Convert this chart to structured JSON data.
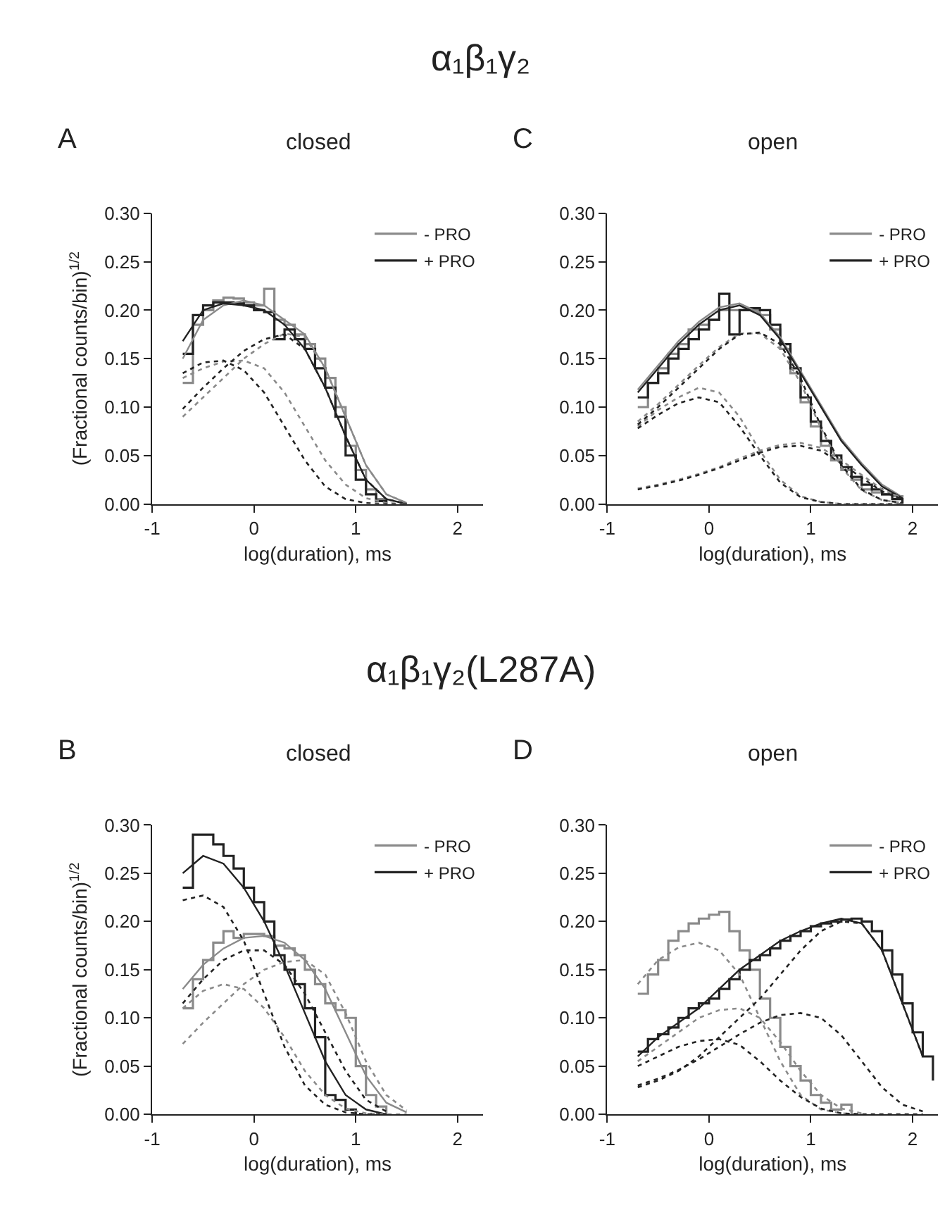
{
  "chart_data": [
    {
      "type": "step",
      "title": "closed",
      "ylabel": "(Fractional counts/bin)$^{1/2}$",
      "xlabel": "log(duration), ms",
      "annotations": [
        "A",
        "α₁β₁γ₂"
      ],
      "xlim": [
        -1,
        2.25
      ],
      "xticks": [
        -1,
        0,
        1,
        2
      ],
      "ylim": [
        0,
        0.3
      ],
      "yticks": [
        {
          "value": 0,
          "label": "0.00"
        },
        {
          "value": 0.05,
          "label": "0.05"
        },
        {
          "value": 0.1,
          "label": "0.10"
        },
        {
          "value": 0.15,
          "label": "0.15"
        },
        {
          "value": 0.2,
          "label": "0.20"
        },
        {
          "value": 0.25,
          "label": "0.25"
        },
        {
          "value": 0.3,
          "label": "0.30"
        }
      ],
      "legend": "top right",
      "series": [
        {
          "name": "- PRO",
          "color": "#8a8a8a",
          "line_style": "solid",
          "x": [
            -0.7,
            -0.6,
            -0.5,
            -0.4,
            -0.3,
            -0.2,
            -0.1,
            0,
            0.1,
            0.2,
            0.3,
            0.4,
            0.5,
            0.6,
            0.7,
            0.8,
            0.9,
            1.0,
            1.1,
            1.2,
            1.3
          ],
          "values": [
            0.125,
            0.185,
            0.2,
            0.21,
            0.213,
            0.212,
            0.208,
            0.205,
            0.222,
            0.19,
            0.185,
            0.175,
            0.165,
            0.15,
            0.13,
            0.1,
            0.06,
            0.035,
            0.015,
            0.005,
            0.0
          ]
        },
        {
          "name": "+ PRO",
          "color": "#222222",
          "line_style": "solid",
          "x": [
            -0.7,
            -0.6,
            -0.5,
            -0.4,
            -0.3,
            -0.2,
            -0.1,
            0,
            0.1,
            0.2,
            0.3,
            0.4,
            0.5,
            0.6,
            0.7,
            0.8,
            0.9,
            1.0,
            1.1,
            1.2,
            1.3
          ],
          "values": [
            0.155,
            0.195,
            0.205,
            0.208,
            0.208,
            0.207,
            0.205,
            0.2,
            0.198,
            0.17,
            0.18,
            0.17,
            0.16,
            0.14,
            0.12,
            0.09,
            0.05,
            0.025,
            0.01,
            0.003,
            0.0
          ]
        },
        {
          "type": "line",
          "color": "#8a8a8a",
          "line_style": "solid",
          "x": [
            -0.7,
            -0.5,
            -0.3,
            -0.1,
            0.1,
            0.3,
            0.5,
            0.7,
            0.9,
            1.1,
            1.3,
            1.5
          ],
          "values": [
            0.15,
            0.19,
            0.205,
            0.21,
            0.205,
            0.19,
            0.175,
            0.14,
            0.09,
            0.04,
            0.01,
            0.001
          ]
        },
        {
          "type": "line",
          "color": "#222222",
          "line_style": "solid",
          "x": [
            -0.7,
            -0.5,
            -0.3,
            -0.1,
            0.1,
            0.3,
            0.5,
            0.7,
            0.9,
            1.1,
            1.3,
            1.5
          ],
          "values": [
            0.168,
            0.2,
            0.207,
            0.205,
            0.2,
            0.185,
            0.16,
            0.12,
            0.07,
            0.025,
            0.005,
            0.0
          ]
        },
        {
          "type": "line",
          "color": "#8a8a8a",
          "line_style": "dotted",
          "x": [
            -0.7,
            -0.5,
            -0.3,
            -0.1,
            0.1,
            0.3,
            0.5,
            0.7,
            0.9,
            1.1,
            1.3,
            1.5
          ],
          "values": [
            0.13,
            0.14,
            0.147,
            0.148,
            0.14,
            0.115,
            0.08,
            0.045,
            0.02,
            0.006,
            0.001,
            0.0
          ]
        },
        {
          "type": "line",
          "color": "#222222",
          "line_style": "dotted",
          "x": [
            -0.7,
            -0.5,
            -0.3,
            -0.1,
            0.1,
            0.3,
            0.5,
            0.7,
            0.9,
            1.1,
            1.3,
            1.5
          ],
          "values": [
            0.135,
            0.146,
            0.148,
            0.138,
            0.115,
            0.08,
            0.045,
            0.018,
            0.005,
            0.001,
            0.0,
            0.0
          ]
        },
        {
          "type": "line",
          "color": "#8a8a8a",
          "line_style": "dotted",
          "x": [
            -0.7,
            -0.5,
            -0.3,
            -0.1,
            0.1,
            0.3,
            0.5,
            0.7,
            0.9,
            1.1,
            1.3,
            1.5
          ],
          "values": [
            0.09,
            0.11,
            0.13,
            0.15,
            0.165,
            0.176,
            0.172,
            0.14,
            0.09,
            0.04,
            0.01,
            0.001
          ]
        },
        {
          "type": "line",
          "color": "#222222",
          "line_style": "dotted",
          "x": [
            -0.7,
            -0.5,
            -0.3,
            -0.1,
            0.1,
            0.3,
            0.5,
            0.7,
            0.9,
            1.1,
            1.3,
            1.5
          ],
          "values": [
            0.098,
            0.12,
            0.14,
            0.158,
            0.17,
            0.175,
            0.16,
            0.12,
            0.07,
            0.025,
            0.005,
            0.0
          ]
        }
      ]
    },
    {
      "type": "step",
      "title": "open",
      "xlabel": "log(duration), ms",
      "annotations": [
        "C"
      ],
      "xlim": [
        -1,
        2.25
      ],
      "xticks": [
        -1,
        0,
        1,
        2
      ],
      "ylim": [
        0,
        0.3
      ],
      "yticks": [
        {
          "value": 0,
          "label": "0.00"
        },
        {
          "value": 0.05,
          "label": "0.05"
        },
        {
          "value": 0.1,
          "label": "0.10"
        },
        {
          "value": 0.15,
          "label": "0.15"
        },
        {
          "value": 0.2,
          "label": "0.20"
        },
        {
          "value": 0.25,
          "label": "0.25"
        },
        {
          "value": 0.3,
          "label": "0.30"
        }
      ],
      "legend": "top right",
      "series": [
        {
          "name": "- PRO",
          "color": "#8a8a8a",
          "line_style": "solid",
          "x": [
            -0.7,
            -0.6,
            -0.5,
            -0.4,
            -0.3,
            -0.2,
            -0.1,
            0,
            0.1,
            0.2,
            0.3,
            0.4,
            0.5,
            0.6,
            0.7,
            0.8,
            0.9,
            1.0,
            1.1,
            1.2,
            1.3,
            1.4,
            1.5,
            1.6,
            1.7,
            1.8,
            1.9
          ],
          "values": [
            0.1,
            0.125,
            0.14,
            0.155,
            0.165,
            0.18,
            0.185,
            0.19,
            0.2,
            0.2,
            0.2,
            0.2,
            0.195,
            0.18,
            0.16,
            0.135,
            0.105,
            0.08,
            0.06,
            0.045,
            0.035,
            0.025,
            0.015,
            0.012,
            0.01,
            0.008,
            0.0
          ]
        },
        {
          "name": "+ PRO",
          "color": "#222222",
          "line_style": "solid",
          "x": [
            -0.7,
            -0.6,
            -0.5,
            -0.4,
            -0.3,
            -0.2,
            -0.1,
            0,
            0.1,
            0.2,
            0.3,
            0.4,
            0.5,
            0.6,
            0.7,
            0.8,
            0.9,
            1.0,
            1.1,
            1.2,
            1.3,
            1.4,
            1.5,
            1.6,
            1.7,
            1.8,
            1.9
          ],
          "values": [
            0.11,
            0.125,
            0.135,
            0.15,
            0.16,
            0.17,
            0.18,
            0.19,
            0.217,
            0.175,
            0.2,
            0.202,
            0.2,
            0.185,
            0.165,
            0.14,
            0.11,
            0.085,
            0.065,
            0.05,
            0.038,
            0.028,
            0.02,
            0.015,
            0.01,
            0.005,
            0.0
          ]
        },
        {
          "type": "line",
          "color": "#8a8a8a",
          "line_style": "solid",
          "x": [
            -0.7,
            -0.5,
            -0.3,
            -0.1,
            0.1,
            0.3,
            0.5,
            0.7,
            0.9,
            1.1,
            1.3,
            1.5,
            1.7,
            1.9
          ],
          "values": [
            0.118,
            0.143,
            0.168,
            0.188,
            0.203,
            0.207,
            0.197,
            0.172,
            0.137,
            0.102,
            0.067,
            0.042,
            0.02,
            0.007
          ]
        },
        {
          "type": "line",
          "color": "#222222",
          "line_style": "solid",
          "x": [
            -0.7,
            -0.5,
            -0.3,
            -0.1,
            0.1,
            0.3,
            0.5,
            0.7,
            0.9,
            1.1,
            1.3,
            1.5,
            1.7,
            1.9
          ],
          "values": [
            0.115,
            0.14,
            0.165,
            0.185,
            0.2,
            0.205,
            0.195,
            0.17,
            0.135,
            0.1,
            0.065,
            0.04,
            0.018,
            0.006
          ]
        },
        {
          "type": "line",
          "color": "#8a8a8a",
          "line_style": "dotted",
          "x": [
            -0.7,
            -0.5,
            -0.3,
            -0.1,
            0.1,
            0.3,
            0.5,
            0.7,
            0.9,
            1.1,
            1.3,
            1.5,
            1.7,
            1.9
          ],
          "values": [
            0.08,
            0.097,
            0.11,
            0.12,
            0.115,
            0.09,
            0.055,
            0.025,
            0.008,
            0.002,
            0.0,
            0.0,
            0.0,
            0.0
          ]
        },
        {
          "type": "line",
          "color": "#222222",
          "line_style": "dotted",
          "x": [
            -0.7,
            -0.5,
            -0.3,
            -0.1,
            0.1,
            0.3,
            0.5,
            0.7,
            0.9,
            1.1,
            1.3,
            1.5,
            1.7,
            1.9
          ],
          "values": [
            0.078,
            0.092,
            0.104,
            0.11,
            0.105,
            0.08,
            0.05,
            0.022,
            0.007,
            0.002,
            0.0,
            0.0,
            0.0,
            0.0
          ]
        },
        {
          "type": "line",
          "color": "#8a8a8a",
          "line_style": "dotted",
          "x": [
            -0.7,
            -0.5,
            -0.3,
            -0.1,
            0.1,
            0.3,
            0.5,
            0.7,
            0.9,
            1.1,
            1.3,
            1.5,
            1.7,
            1.9
          ],
          "values": [
            0.085,
            0.103,
            0.123,
            0.143,
            0.162,
            0.176,
            0.176,
            0.16,
            0.125,
            0.078,
            0.038,
            0.014,
            0.004,
            0.001
          ]
        },
        {
          "type": "line",
          "color": "#222222",
          "line_style": "dotted",
          "x": [
            -0.7,
            -0.5,
            -0.3,
            -0.1,
            0.1,
            0.3,
            0.5,
            0.7,
            0.9,
            1.1,
            1.3,
            1.5,
            1.7,
            1.9
          ],
          "values": [
            0.082,
            0.1,
            0.12,
            0.14,
            0.16,
            0.175,
            0.177,
            0.165,
            0.13,
            0.08,
            0.04,
            0.015,
            0.004,
            0.001
          ]
        },
        {
          "type": "line",
          "color": "#8a8a8a",
          "line_style": "dotted",
          "x": [
            -0.7,
            -0.5,
            -0.3,
            -0.1,
            0.1,
            0.3,
            0.5,
            0.7,
            0.9,
            1.1,
            1.3,
            1.5,
            1.7,
            1.9
          ],
          "values": [
            0.016,
            0.02,
            0.025,
            0.031,
            0.038,
            0.047,
            0.055,
            0.061,
            0.063,
            0.058,
            0.045,
            0.03,
            0.015,
            0.006
          ]
        },
        {
          "type": "line",
          "color": "#222222",
          "line_style": "dotted",
          "x": [
            -0.7,
            -0.5,
            -0.3,
            -0.1,
            0.1,
            0.3,
            0.5,
            0.7,
            0.9,
            1.1,
            1.3,
            1.5,
            1.7,
            1.9
          ],
          "values": [
            0.015,
            0.019,
            0.024,
            0.03,
            0.037,
            0.045,
            0.053,
            0.059,
            0.06,
            0.055,
            0.042,
            0.027,
            0.013,
            0.005
          ]
        }
      ]
    },
    {
      "type": "step",
      "title": "closed",
      "ylabel": "(Fractional counts/bin)$^{1/2}$",
      "xlabel": "log(duration), ms",
      "annotations": [
        "B",
        "α₁β₁γ₂(L287A)"
      ],
      "xlim": [
        -1,
        2.25
      ],
      "xticks": [
        -1,
        0,
        1,
        2
      ],
      "ylim": [
        0,
        0.3
      ],
      "yticks": [
        {
          "value": 0,
          "label": "0.00"
        },
        {
          "value": 0.05,
          "label": "0.05"
        },
        {
          "value": 0.1,
          "label": "0.10"
        },
        {
          "value": 0.15,
          "label": "0.15"
        },
        {
          "value": 0.2,
          "label": "0.20"
        },
        {
          "value": 0.25,
          "label": "0.25"
        },
        {
          "value": 0.3,
          "label": "0.30"
        }
      ],
      "legend": "top right",
      "series": [
        {
          "name": "- PRO",
          "color": "#8a8a8a",
          "line_style": "solid",
          "x": [
            -0.7,
            -0.6,
            -0.5,
            -0.4,
            -0.3,
            -0.2,
            -0.1,
            0,
            0.1,
            0.2,
            0.3,
            0.4,
            0.5,
            0.6,
            0.7,
            0.8,
            0.9,
            1.0,
            1.1,
            1.2,
            1.3
          ],
          "values": [
            0.11,
            0.14,
            0.16,
            0.178,
            0.19,
            0.183,
            0.187,
            0.187,
            0.185,
            0.175,
            0.172,
            0.165,
            0.15,
            0.135,
            0.115,
            0.108,
            0.1,
            0.05,
            0.02,
            0.008,
            0.0
          ]
        },
        {
          "name": "+ PRO",
          "color": "#222222",
          "line_style": "solid",
          "x": [
            -0.7,
            -0.6,
            -0.5,
            -0.4,
            -0.3,
            -0.2,
            -0.1,
            0,
            0.1,
            0.2,
            0.3,
            0.4,
            0.5,
            0.6,
            0.7,
            0.8,
            0.9,
            1.0
          ],
          "values": [
            0.235,
            0.29,
            0.29,
            0.28,
            0.268,
            0.255,
            0.235,
            0.22,
            0.2,
            0.165,
            0.15,
            0.135,
            0.11,
            0.08,
            0.02,
            0.015,
            0.005,
            0.0
          ]
        },
        {
          "type": "line",
          "color": "#8a8a8a",
          "line_style": "solid",
          "x": [
            -0.7,
            -0.5,
            -0.3,
            -0.1,
            0.1,
            0.3,
            0.5,
            0.7,
            0.9,
            1.1,
            1.3,
            1.5
          ],
          "values": [
            0.13,
            0.155,
            0.172,
            0.183,
            0.185,
            0.178,
            0.16,
            0.13,
            0.085,
            0.04,
            0.012,
            0.002
          ]
        },
        {
          "type": "line",
          "color": "#222222",
          "line_style": "solid",
          "x": [
            -0.7,
            -0.5,
            -0.3,
            -0.1,
            0.1,
            0.3,
            0.5,
            0.7,
            0.9,
            1.1,
            1.3
          ],
          "values": [
            0.25,
            0.268,
            0.26,
            0.235,
            0.2,
            0.155,
            0.105,
            0.055,
            0.02,
            0.005,
            0.0
          ]
        },
        {
          "type": "line",
          "color": "#8a8a8a",
          "line_style": "dotted",
          "x": [
            -0.7,
            -0.5,
            -0.3,
            -0.1,
            0.1,
            0.3,
            0.5,
            0.7,
            0.9,
            1.1,
            1.3,
            1.5
          ],
          "values": [
            0.11,
            0.128,
            0.135,
            0.13,
            0.11,
            0.08,
            0.045,
            0.02,
            0.006,
            0.001,
            0.0,
            0.0
          ]
        },
        {
          "type": "line",
          "color": "#8a8a8a",
          "line_style": "dotted",
          "x": [
            -0.7,
            -0.5,
            -0.3,
            -0.1,
            0.1,
            0.3,
            0.5,
            0.7,
            0.9,
            1.1,
            1.3,
            1.5
          ],
          "values": [
            0.073,
            0.095,
            0.115,
            0.135,
            0.15,
            0.158,
            0.16,
            0.145,
            0.105,
            0.055,
            0.02,
            0.004
          ]
        },
        {
          "type": "line",
          "color": "#222222",
          "line_style": "dotted",
          "x": [
            -0.7,
            -0.5,
            -0.3,
            -0.1,
            0.1,
            0.3,
            0.5,
            0.7,
            0.9,
            1.1,
            1.3
          ],
          "values": [
            0.222,
            0.227,
            0.215,
            0.18,
            0.125,
            0.07,
            0.03,
            0.01,
            0.002,
            0.0,
            0.0
          ]
        },
        {
          "type": "line",
          "color": "#222222",
          "line_style": "dotted",
          "x": [
            -0.7,
            -0.5,
            -0.3,
            -0.1,
            0.1,
            0.3,
            0.5,
            0.7,
            0.9,
            1.1,
            1.3
          ],
          "values": [
            0.115,
            0.14,
            0.16,
            0.17,
            0.17,
            0.155,
            0.125,
            0.085,
            0.045,
            0.015,
            0.003
          ]
        }
      ]
    },
    {
      "type": "step",
      "title": "open",
      "xlabel": "log(duration), ms",
      "annotations": [
        "D"
      ],
      "xlim": [
        -1,
        2.25
      ],
      "xticks": [
        -1,
        0,
        1,
        2
      ],
      "ylim": [
        0,
        0.3
      ],
      "yticks": [
        {
          "value": 0,
          "label": "0.00"
        },
        {
          "value": 0.05,
          "label": "0.05"
        },
        {
          "value": 0.1,
          "label": "0.10"
        },
        {
          "value": 0.15,
          "label": "0.15"
        },
        {
          "value": 0.2,
          "label": "0.20"
        },
        {
          "value": 0.25,
          "label": "0.25"
        },
        {
          "value": 0.3,
          "label": "0.30"
        }
      ],
      "legend": "top right",
      "series": [
        {
          "name": "- PRO",
          "color": "#8a8a8a",
          "line_style": "solid",
          "x": [
            -0.7,
            -0.6,
            -0.5,
            -0.4,
            -0.3,
            -0.2,
            -0.1,
            0,
            0.1,
            0.2,
            0.3,
            0.4,
            0.5,
            0.6,
            0.7,
            0.8,
            0.9,
            1.0,
            1.1,
            1.2,
            1.3,
            1.4
          ],
          "values": [
            0.125,
            0.145,
            0.16,
            0.18,
            0.19,
            0.198,
            0.203,
            0.207,
            0.21,
            0.19,
            0.17,
            0.15,
            0.12,
            0.1,
            0.07,
            0.05,
            0.035,
            0.02,
            0.012,
            0.005,
            0.01,
            0.0
          ]
        },
        {
          "name": "+ PRO",
          "color": "#222222",
          "line_style": "solid",
          "x": [
            -0.7,
            -0.6,
            -0.5,
            -0.4,
            -0.3,
            -0.2,
            -0.1,
            0,
            0.1,
            0.2,
            0.3,
            0.4,
            0.5,
            0.6,
            0.7,
            0.8,
            0.9,
            1.0,
            1.1,
            1.2,
            1.3,
            1.4,
            1.5,
            1.6,
            1.7,
            1.8,
            1.9,
            2.0,
            2.1,
            2.2
          ],
          "values": [
            0.065,
            0.078,
            0.083,
            0.09,
            0.1,
            0.11,
            0.115,
            0.12,
            0.13,
            0.14,
            0.15,
            0.16,
            0.165,
            0.172,
            0.18,
            0.185,
            0.19,
            0.195,
            0.198,
            0.2,
            0.202,
            0.203,
            0.2,
            0.19,
            0.17,
            0.145,
            0.115,
            0.085,
            0.06,
            0.035
          ]
        },
        {
          "type": "line",
          "color": "#222222",
          "line_style": "solid",
          "x": [
            -0.7,
            -0.5,
            -0.3,
            -0.1,
            0.1,
            0.3,
            0.5,
            0.7,
            0.9,
            1.1,
            1.3,
            1.5,
            1.7,
            1.9,
            2.1
          ],
          "values": [
            0.06,
            0.08,
            0.095,
            0.11,
            0.13,
            0.15,
            0.165,
            0.18,
            0.19,
            0.198,
            0.203,
            0.198,
            0.17,
            0.115,
            0.06
          ]
        },
        {
          "type": "line",
          "color": "#8a8a8a",
          "line_style": "dotted",
          "x": [
            -0.7,
            -0.5,
            -0.3,
            -0.1,
            0.1,
            0.3,
            0.5,
            0.7,
            0.9,
            1.1,
            1.3,
            1.5
          ],
          "values": [
            0.135,
            0.16,
            0.173,
            0.178,
            0.17,
            0.145,
            0.1,
            0.055,
            0.02,
            0.005,
            0.001,
            0.0
          ]
        },
        {
          "type": "line",
          "color": "#8a8a8a",
          "line_style": "dotted",
          "x": [
            -0.7,
            -0.5,
            -0.3,
            -0.1,
            0.1,
            0.3,
            0.5,
            0.7,
            0.9,
            1.1,
            1.3,
            1.5
          ],
          "values": [
            0.055,
            0.07,
            0.085,
            0.1,
            0.108,
            0.11,
            0.1,
            0.075,
            0.045,
            0.02,
            0.006,
            0.001
          ]
        },
        {
          "type": "line",
          "color": "#222222",
          "line_style": "dotted",
          "x": [
            -0.7,
            -0.5,
            -0.3,
            -0.1,
            0.1,
            0.3,
            0.5,
            0.7,
            0.9,
            1.1,
            1.3,
            1.5,
            1.7,
            1.9,
            2.1
          ],
          "values": [
            0.05,
            0.06,
            0.07,
            0.076,
            0.078,
            0.072,
            0.055,
            0.035,
            0.018,
            0.006,
            0.001,
            0.0,
            0.0,
            0.0,
            0.0
          ]
        },
        {
          "type": "line",
          "color": "#222222",
          "line_style": "dotted",
          "x": [
            -0.7,
            -0.5,
            -0.3,
            -0.1,
            0.1,
            0.3,
            0.5,
            0.7,
            0.9,
            1.1,
            1.3,
            1.5,
            1.7,
            1.9,
            2.1
          ],
          "values": [
            0.03,
            0.037,
            0.046,
            0.057,
            0.07,
            0.083,
            0.095,
            0.103,
            0.105,
            0.1,
            0.082,
            0.055,
            0.028,
            0.01,
            0.003
          ]
        },
        {
          "type": "line",
          "color": "#222222",
          "line_style": "dotted",
          "x": [
            -0.7,
            -0.5,
            -0.3,
            -0.1,
            0.1,
            0.3,
            0.5,
            0.7,
            0.9,
            1.1,
            1.3,
            1.5,
            1.7,
            1.9,
            2.1
          ],
          "values": [
            0.028,
            0.035,
            0.045,
            0.06,
            0.08,
            0.1,
            0.12,
            0.145,
            0.17,
            0.19,
            0.2,
            0.198,
            0.17,
            0.115,
            0.06
          ]
        }
      ]
    }
  ]
}
